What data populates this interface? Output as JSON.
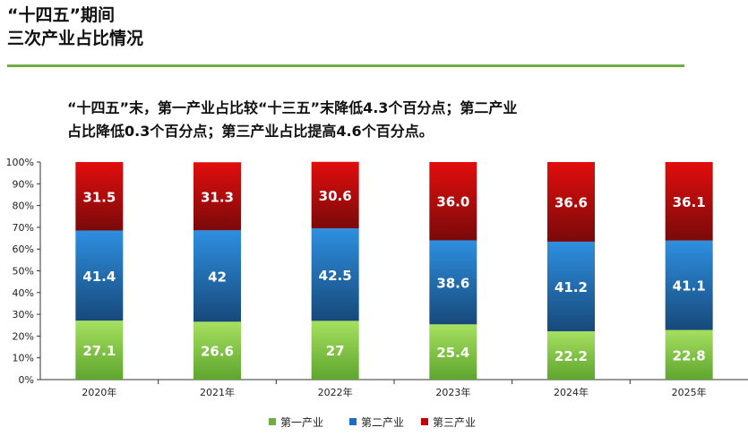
{
  "header": {
    "title_line1": "“十四五”期间",
    "title_line2": "三次产业占比情况"
  },
  "summary": {
    "line1": "“十四五”末，第一产业占比较“十三五”末降低4.3个百分点；第二产业",
    "line2": "占比降低0.3个百分点；第三产业占比提高4.6个百分点。"
  },
  "colors": {
    "accent_rule": "#70ad47",
    "primary": "#70ad47",
    "secondary": "#1f6fc0",
    "tertiary": "#c00000"
  },
  "chart_data": {
    "type": "bar",
    "stacked": true,
    "categories": [
      "2020年",
      "2021年",
      "2022年",
      "2023年",
      "2024年",
      "2025年"
    ],
    "series": [
      {
        "name": "第一产业",
        "values": [
          27.1,
          26.6,
          27,
          25.4,
          22.2,
          22.8
        ],
        "labels": [
          "27.1",
          "26.6",
          "27",
          "25.4",
          "22.2",
          "22.8"
        ],
        "color": "#70ad47"
      },
      {
        "name": "第二产业",
        "values": [
          41.4,
          42,
          42.5,
          38.6,
          41.2,
          41.1
        ],
        "labels": [
          "41.4",
          "42",
          "42.5",
          "38.6",
          "41.2",
          "41.1"
        ],
        "color": "#1f6fc0"
      },
      {
        "name": "第三产业",
        "values": [
          31.5,
          31.3,
          30.6,
          36.0,
          36.6,
          36.1
        ],
        "labels": [
          "31.5",
          "31.3",
          "30.6",
          "36.0",
          "36.6",
          "36.1"
        ],
        "color": "#c00000"
      }
    ],
    "y_ticks": [
      "0%",
      "10%",
      "20%",
      "30%",
      "40%",
      "50%",
      "60%",
      "70%",
      "80%",
      "90%",
      "100%"
    ],
    "ylim": [
      0,
      100
    ],
    "grid": false,
    "legend": "bottom"
  }
}
